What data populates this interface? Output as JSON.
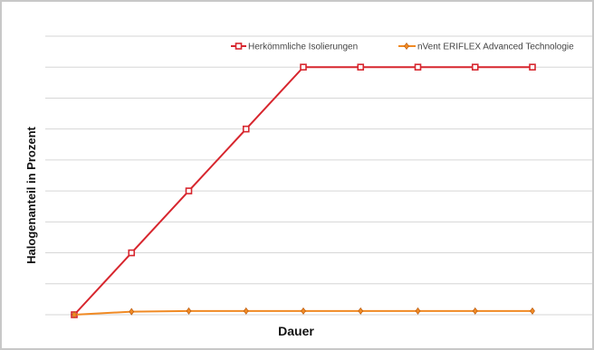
{
  "chart_data": {
    "type": "line",
    "title": "",
    "xlabel": "Dauer",
    "ylabel": "Halogenanteil in Prozent",
    "x": [
      1,
      2,
      3,
      4,
      5,
      6,
      7,
      8,
      9
    ],
    "ylim": [
      0,
      9
    ],
    "grid": true,
    "legend_position": "top-right",
    "series": [
      {
        "name": "Herkömmliche Isolierungen",
        "color": "#d7262e",
        "marker": "square",
        "values": [
          0,
          2,
          4,
          6,
          8,
          8,
          8,
          8,
          8
        ]
      },
      {
        "name": "nVent ERIFLEX Advanced Technologie",
        "color": "#f08a24",
        "marker": "diamond",
        "values": [
          0,
          0.1,
          0.12,
          0.12,
          0.12,
          0.12,
          0.12,
          0.12,
          0.12
        ]
      }
    ]
  }
}
